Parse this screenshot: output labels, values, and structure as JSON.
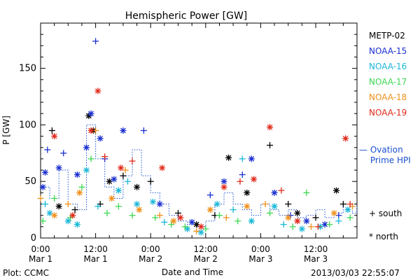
{
  "chart_data": {
    "type": "scatter",
    "title": "Hemispheric Power [GW]",
    "ylabel": "P [GW]",
    "xlabel": "Date and Time",
    "ylim": [
      0,
      190
    ],
    "yticks": [
      0,
      50,
      100,
      150
    ],
    "xlim": [
      "2013-03-01 00:00",
      "2013-03-03 21:00"
    ],
    "x_ticks": [
      {
        "x": "2013-03-01 00:00",
        "time": "0:00",
        "date": "Mar 1"
      },
      {
        "x": "2013-03-01 12:00",
        "time": "12:00",
        "date": "Mar 1"
      },
      {
        "x": "2013-03-02 00:00",
        "time": "0:00",
        "date": "Mar 2"
      },
      {
        "x": "2013-03-02 12:00",
        "time": "12:00",
        "date": "Mar 2"
      },
      {
        "x": "2013-03-03 00:00",
        "time": "0:00",
        "date": "Mar 3"
      },
      {
        "x": "2013-03-03 12:00",
        "time": "12:00",
        "date": "Mar 3"
      }
    ],
    "grid": false,
    "legend_position": "right",
    "marker_legend": [
      {
        "symbol": "+",
        "label": "south"
      },
      {
        "symbol": "*",
        "label": "north"
      }
    ],
    "series": [
      {
        "name": "METP-02",
        "color": "#000000",
        "points": [
          {
            "x": "2013-03-01 02:30",
            "y": 95,
            "m": "+"
          },
          {
            "x": "2013-03-01 04:00",
            "y": 28,
            "m": "*"
          },
          {
            "x": "2013-03-01 07:30",
            "y": 25,
            "m": "+"
          },
          {
            "x": "2013-03-01 10:30",
            "y": 108,
            "m": "*"
          },
          {
            "x": "2013-03-01 11:30",
            "y": 95,
            "m": "*"
          },
          {
            "x": "2013-03-01 13:00",
            "y": 30,
            "m": "+"
          },
          {
            "x": "2013-03-01 15:00",
            "y": 50,
            "m": "*"
          },
          {
            "x": "2013-03-01 18:00",
            "y": 55,
            "m": "+"
          },
          {
            "x": "2013-03-01 21:00",
            "y": 45,
            "m": "*"
          },
          {
            "x": "2013-03-02 00:00",
            "y": 50,
            "m": "+"
          },
          {
            "x": "2013-03-02 06:00",
            "y": 22,
            "m": "+"
          },
          {
            "x": "2013-03-02 10:00",
            "y": 12,
            "m": "*"
          },
          {
            "x": "2013-03-02 14:00",
            "y": 20,
            "m": "+"
          },
          {
            "x": "2013-03-02 17:00",
            "y": 71,
            "m": "*"
          },
          {
            "x": "2013-03-02 21:00",
            "y": 40,
            "m": "*"
          },
          {
            "x": "2013-03-03 02:00",
            "y": 82,
            "m": "+"
          },
          {
            "x": "2013-03-03 06:00",
            "y": 30,
            "m": "+"
          },
          {
            "x": "2013-03-03 08:00",
            "y": 22,
            "m": "*"
          },
          {
            "x": "2013-03-03 12:00",
            "y": 18,
            "m": "+"
          },
          {
            "x": "2013-03-03 16:30",
            "y": 42,
            "m": "*"
          },
          {
            "x": "2013-03-03 18:00",
            "y": 30,
            "m": "+"
          }
        ]
      },
      {
        "name": "NOAA-15",
        "color": "#1a2fd0",
        "points": [
          {
            "x": "2013-03-01 00:30",
            "y": 45,
            "m": "*"
          },
          {
            "x": "2013-03-01 01:00",
            "y": 58,
            "m": "*"
          },
          {
            "x": "2013-03-01 01:30",
            "y": 78,
            "m": "+"
          },
          {
            "x": "2013-03-01 04:00",
            "y": 62,
            "m": "*"
          },
          {
            "x": "2013-03-01 05:00",
            "y": 75,
            "m": "+"
          },
          {
            "x": "2013-03-01 08:00",
            "y": 56,
            "m": "*"
          },
          {
            "x": "2013-03-01 10:00",
            "y": 80,
            "m": "*"
          },
          {
            "x": "2013-03-01 11:00",
            "y": 110,
            "m": "*"
          },
          {
            "x": "2013-03-01 12:00",
            "y": 174,
            "m": "+"
          },
          {
            "x": "2013-03-01 13:00",
            "y": 88,
            "m": "*"
          },
          {
            "x": "2013-03-01 14:00",
            "y": 70,
            "m": "+"
          },
          {
            "x": "2013-03-01 16:00",
            "y": 52,
            "m": "*"
          },
          {
            "x": "2013-03-01 18:00",
            "y": 95,
            "m": "*"
          },
          {
            "x": "2013-03-01 22:30",
            "y": 95,
            "m": "+"
          },
          {
            "x": "2013-03-02 02:00",
            "y": 30,
            "m": "*"
          },
          {
            "x": "2013-03-02 09:00",
            "y": 14,
            "m": "*"
          },
          {
            "x": "2013-03-02 13:00",
            "y": 38,
            "m": "+"
          },
          {
            "x": "2013-03-02 16:00",
            "y": 50,
            "m": "*"
          },
          {
            "x": "2013-03-02 20:00",
            "y": 56,
            "m": "+"
          },
          {
            "x": "2013-03-02 22:00",
            "y": 70,
            "m": "*"
          },
          {
            "x": "2013-03-03 03:00",
            "y": 40,
            "m": "*"
          },
          {
            "x": "2013-03-03 06:30",
            "y": 20,
            "m": "+"
          },
          {
            "x": "2013-03-03 10:00",
            "y": 15,
            "m": "*"
          },
          {
            "x": "2013-03-03 14:00",
            "y": 12,
            "m": "*"
          },
          {
            "x": "2013-03-03 17:00",
            "y": 20,
            "m": "+"
          }
        ]
      },
      {
        "name": "NOAA-16",
        "color": "#1ab8d8",
        "points": [
          {
            "x": "2013-03-01 01:00",
            "y": 30,
            "m": "+"
          },
          {
            "x": "2013-03-01 02:00",
            "y": 22,
            "m": "*"
          },
          {
            "x": "2013-03-01 06:00",
            "y": 15,
            "m": "*"
          },
          {
            "x": "2013-03-01 08:00",
            "y": 12,
            "m": "*"
          },
          {
            "x": "2013-03-01 10:00",
            "y": 60,
            "m": "*"
          },
          {
            "x": "2013-03-01 12:30",
            "y": 28,
            "m": "+"
          },
          {
            "x": "2013-03-01 17:00",
            "y": 42,
            "m": "*"
          },
          {
            "x": "2013-03-01 19:00",
            "y": 50,
            "m": "+"
          },
          {
            "x": "2013-03-01 21:00",
            "y": 30,
            "m": "*"
          },
          {
            "x": "2013-03-02 00:30",
            "y": 32,
            "m": "*"
          },
          {
            "x": "2013-03-02 03:00",
            "y": 14,
            "m": "+"
          },
          {
            "x": "2013-03-02 08:00",
            "y": 8,
            "m": "*"
          },
          {
            "x": "2013-03-02 11:00",
            "y": 5,
            "m": "*"
          },
          {
            "x": "2013-03-02 14:30",
            "y": 30,
            "m": "*"
          },
          {
            "x": "2013-03-02 18:00",
            "y": 25,
            "m": "+"
          },
          {
            "x": "2013-03-02 20:00",
            "y": 70,
            "m": "+"
          },
          {
            "x": "2013-03-02 22:00",
            "y": 15,
            "m": "*"
          },
          {
            "x": "2013-03-03 03:00",
            "y": 28,
            "m": "*"
          },
          {
            "x": "2013-03-03 05:00",
            "y": 12,
            "m": "+"
          },
          {
            "x": "2013-03-03 09:00",
            "y": 8,
            "m": "*"
          },
          {
            "x": "2013-03-03 13:00",
            "y": 10,
            "m": "*"
          },
          {
            "x": "2013-03-03 17:00",
            "y": 15,
            "m": "+"
          },
          {
            "x": "2013-03-03 19:00",
            "y": 25,
            "m": "*"
          }
        ]
      },
      {
        "name": "NOAA-17",
        "color": "#3cd850",
        "points": [
          {
            "x": "2013-03-01 00:30",
            "y": 15,
            "m": "+"
          },
          {
            "x": "2013-03-01 03:00",
            "y": 35,
            "m": "+"
          },
          {
            "x": "2013-03-01 06:30",
            "y": 18,
            "m": "+"
          },
          {
            "x": "2013-03-01 09:00",
            "y": 45,
            "m": "+"
          },
          {
            "x": "2013-03-01 11:00",
            "y": 70,
            "m": "+"
          },
          {
            "x": "2013-03-01 14:30",
            "y": 22,
            "m": "+"
          },
          {
            "x": "2013-03-01 17:00",
            "y": 28,
            "m": "+"
          },
          {
            "x": "2013-03-01 20:00",
            "y": 20,
            "m": "+"
          },
          {
            "x": "2013-03-02 01:00",
            "y": 18,
            "m": "+"
          },
          {
            "x": "2013-03-02 04:30",
            "y": 12,
            "m": "+"
          },
          {
            "x": "2013-03-02 07:30",
            "y": 10,
            "m": "+"
          },
          {
            "x": "2013-03-02 12:00",
            "y": 8,
            "m": "+"
          },
          {
            "x": "2013-03-02 15:00",
            "y": 20,
            "m": "+"
          },
          {
            "x": "2013-03-02 19:00",
            "y": 15,
            "m": "+"
          },
          {
            "x": "2013-03-03 02:00",
            "y": 22,
            "m": "+"
          },
          {
            "x": "2013-03-03 07:00",
            "y": 10,
            "m": "+"
          },
          {
            "x": "2013-03-03 10:00",
            "y": 40,
            "m": "+"
          },
          {
            "x": "2013-03-03 15:00",
            "y": 12,
            "m": "+"
          },
          {
            "x": "2013-03-03 19:30",
            "y": 18,
            "m": "+"
          }
        ]
      },
      {
        "name": "NOAA-18",
        "color": "#f0901a",
        "points": [
          {
            "x": "2013-03-01 00:00",
            "y": 35,
            "m": "+"
          },
          {
            "x": "2013-03-01 03:00",
            "y": 20,
            "m": "*"
          },
          {
            "x": "2013-03-01 06:00",
            "y": 30,
            "m": "+"
          },
          {
            "x": "2013-03-01 08:30",
            "y": 40,
            "m": "*"
          },
          {
            "x": "2013-03-01 12:00",
            "y": 95,
            "m": "+"
          },
          {
            "x": "2013-03-01 15:30",
            "y": 35,
            "m": "*"
          },
          {
            "x": "2013-03-01 18:30",
            "y": 60,
            "m": "+"
          },
          {
            "x": "2013-03-01 21:30",
            "y": 25,
            "m": "*"
          },
          {
            "x": "2013-03-02 02:00",
            "y": 20,
            "m": "+"
          },
          {
            "x": "2013-03-02 05:00",
            "y": 15,
            "m": "*"
          },
          {
            "x": "2013-03-02 10:00",
            "y": 6,
            "m": "+"
          },
          {
            "x": "2013-03-02 13:00",
            "y": 25,
            "m": "*"
          },
          {
            "x": "2013-03-02 16:30",
            "y": 18,
            "m": "+"
          },
          {
            "x": "2013-03-02 21:00",
            "y": 28,
            "m": "*"
          },
          {
            "x": "2013-03-03 01:00",
            "y": 30,
            "m": "+"
          },
          {
            "x": "2013-03-03 06:00",
            "y": 18,
            "m": "*"
          },
          {
            "x": "2013-03-03 11:00",
            "y": 10,
            "m": "+"
          },
          {
            "x": "2013-03-03 16:00",
            "y": 22,
            "m": "*"
          },
          {
            "x": "2013-03-03 20:00",
            "y": 28,
            "m": "+"
          }
        ]
      },
      {
        "name": "NOAA-19",
        "color": "#e02a1a",
        "points": [
          {
            "x": "2013-03-01 03:00",
            "y": 90,
            "m": "*"
          },
          {
            "x": "2013-03-01 07:00",
            "y": 20,
            "m": "*"
          },
          {
            "x": "2013-03-01 11:00",
            "y": 95,
            "m": "*"
          },
          {
            "x": "2013-03-01 12:30",
            "y": 130,
            "m": "*"
          },
          {
            "x": "2013-03-01 14:00",
            "y": 72,
            "m": "+"
          },
          {
            "x": "2013-03-01 17:30",
            "y": 62,
            "m": "*"
          },
          {
            "x": "2013-03-01 20:00",
            "y": 68,
            "m": "+"
          },
          {
            "x": "2013-03-02 02:30",
            "y": 62,
            "m": "*"
          },
          {
            "x": "2013-03-02 06:30",
            "y": 18,
            "m": "*"
          },
          {
            "x": "2013-03-02 11:00",
            "y": 10,
            "m": "*"
          },
          {
            "x": "2013-03-02 16:00",
            "y": 45,
            "m": "*"
          },
          {
            "x": "2013-03-02 19:30",
            "y": 50,
            "m": "+"
          },
          {
            "x": "2013-03-02 22:30",
            "y": 52,
            "m": "*"
          },
          {
            "x": "2013-03-03 02:00",
            "y": 98,
            "m": "*"
          },
          {
            "x": "2013-03-03 04:30",
            "y": 42,
            "m": "+"
          },
          {
            "x": "2013-03-03 08:00",
            "y": 15,
            "m": "*"
          },
          {
            "x": "2013-03-03 12:30",
            "y": 10,
            "m": "+"
          },
          {
            "x": "2013-03-03 18:30",
            "y": 88,
            "m": "*"
          },
          {
            "x": "2013-03-03 19:30",
            "y": 30,
            "m": "+"
          }
        ]
      }
    ],
    "ovation": {
      "name": "Ovation Prime HPI",
      "color": "#1a4fd0",
      "points": [
        {
          "x": "2013-03-01 00:00",
          "y": 45
        },
        {
          "x": "2013-03-01 02:00",
          "y": 35
        },
        {
          "x": "2013-03-01 04:00",
          "y": 60
        },
        {
          "x": "2013-03-01 06:00",
          "y": 30
        },
        {
          "x": "2013-03-01 08:00",
          "y": 25
        },
        {
          "x": "2013-03-01 10:00",
          "y": 100
        },
        {
          "x": "2013-03-01 12:00",
          "y": 70
        },
        {
          "x": "2013-03-01 14:00",
          "y": 45
        },
        {
          "x": "2013-03-01 16:00",
          "y": 35
        },
        {
          "x": "2013-03-01 18:00",
          "y": 55
        },
        {
          "x": "2013-03-01 20:00",
          "y": 78
        },
        {
          "x": "2013-03-01 22:00",
          "y": 55
        },
        {
          "x": "2013-03-02 00:00",
          "y": 40
        },
        {
          "x": "2013-03-02 02:00",
          "y": 30
        },
        {
          "x": "2013-03-02 04:00",
          "y": 20
        },
        {
          "x": "2013-03-02 06:00",
          "y": 15
        },
        {
          "x": "2013-03-02 08:00",
          "y": 12
        },
        {
          "x": "2013-03-02 10:00",
          "y": 10
        },
        {
          "x": "2013-03-02 12:00",
          "y": 15
        },
        {
          "x": "2013-03-02 14:00",
          "y": 30
        },
        {
          "x": "2013-03-02 16:00",
          "y": 40
        },
        {
          "x": "2013-03-02 18:00",
          "y": 30
        },
        {
          "x": "2013-03-02 20:00",
          "y": 25
        },
        {
          "x": "2013-03-02 22:00",
          "y": 20
        },
        {
          "x": "2013-03-03 00:00",
          "y": 30
        },
        {
          "x": "2013-03-03 02:00",
          "y": 25
        },
        {
          "x": "2013-03-03 04:00",
          "y": 20
        },
        {
          "x": "2013-03-03 06:00",
          "y": 25
        },
        {
          "x": "2013-03-03 08:00",
          "y": 18
        },
        {
          "x": "2013-03-03 10:00",
          "y": 20
        },
        {
          "x": "2013-03-03 12:00",
          "y": 25
        },
        {
          "x": "2013-03-03 14:00",
          "y": 18
        },
        {
          "x": "2013-03-03 16:00",
          "y": 22
        },
        {
          "x": "2013-03-03 18:00",
          "y": 30
        },
        {
          "x": "2013-03-03 20:00",
          "y": 22
        },
        {
          "x": "2013-03-03 21:00",
          "y": 28
        }
      ]
    }
  },
  "footer": {
    "source": "Plot: CCMC",
    "timestamp": "2013/03/03 22:55:07"
  }
}
